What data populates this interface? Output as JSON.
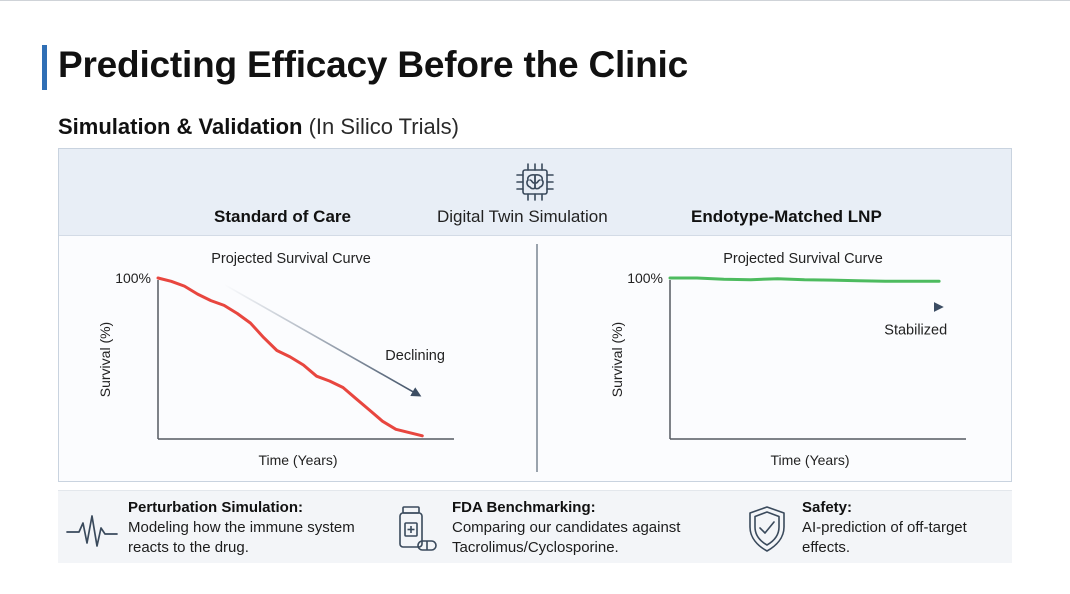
{
  "slide": {
    "title": "Predicting Efficacy Before the Clinic",
    "subtitle_bold": "Simulation & Validation",
    "subtitle_light": "(In Silico Trials)"
  },
  "panel": {
    "header_left": "Standard of Care",
    "header_mid": "Digital Twin Simulation",
    "header_right": "Endotype-Matched LNP",
    "chip_icon": "brain-chip-icon"
  },
  "chart_data": [
    {
      "type": "line",
      "title": "Projected Survival Curve",
      "xlabel": "Time (Years)",
      "ylabel": "Survival (%)",
      "ytick_label": "100%",
      "annotation": "Declining",
      "trend": "declining",
      "color": "#e8463f",
      "x": [
        0,
        0.05,
        0.1,
        0.15,
        0.2,
        0.25,
        0.3,
        0.35,
        0.4,
        0.45,
        0.5,
        0.55,
        0.6,
        0.65,
        0.7,
        0.75,
        0.8,
        0.85,
        0.9,
        0.95,
        1.0
      ],
      "y": [
        100,
        98,
        95,
        90,
        86,
        83,
        78,
        72,
        63,
        55,
        51,
        46,
        39,
        36,
        32,
        25,
        18,
        11,
        6,
        4,
        2
      ],
      "xlim": [
        0,
        1.12
      ],
      "ylim": [
        0,
        105
      ]
    },
    {
      "type": "line",
      "title": "Projected Survival Curve",
      "xlabel": "Time (Years)",
      "ylabel": "Survival (%)",
      "ytick_label": "100%",
      "annotation": "Stabilized",
      "trend": "stable",
      "color": "#4dbb5f",
      "x": [
        0,
        0.1,
        0.2,
        0.3,
        0.4,
        0.5,
        0.6,
        0.7,
        0.8,
        0.9,
        1.0
      ],
      "y": [
        100,
        100,
        99.3,
        99,
        99.6,
        99,
        98.7,
        98.3,
        98,
        98,
        98
      ],
      "xlim": [
        0,
        1.1
      ],
      "ylim": [
        0,
        105
      ]
    }
  ],
  "features": [
    {
      "icon": "heartbeat-pulse-icon",
      "title": "Perturbation Simulation:",
      "desc": "Modeling how the immune system reacts to the drug."
    },
    {
      "icon": "medicine-bottle-icon",
      "title": "FDA Benchmarking:",
      "desc": "Comparing our candidates against Tacrolimus/Cyclosporine."
    },
    {
      "icon": "shield-check-icon",
      "title": "Safety:",
      "desc": "AI-prediction of off-target effects."
    }
  ],
  "colors": {
    "accent": "#2f6fb5",
    "declining": "#e8463f",
    "stable": "#4dbb5f",
    "axis": "#555a60",
    "icon": "#3a4a5c"
  }
}
